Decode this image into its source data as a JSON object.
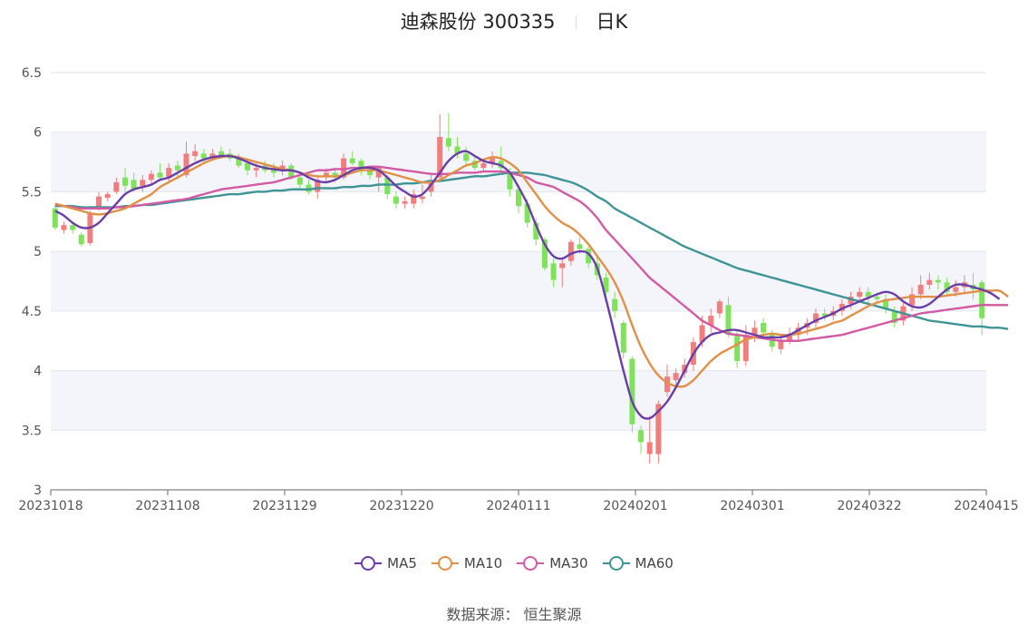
{
  "header": {
    "stock_name": "迪森股份 300335",
    "period": "日K"
  },
  "footer": {
    "source_label": "数据来源：",
    "source_value": "恒生聚源"
  },
  "colors": {
    "up": "#f27d7d",
    "down": "#7fe35a",
    "ma5": "#6a3ea8",
    "ma10": "#e29046",
    "ma30": "#d35aa4",
    "ma60": "#3f9596",
    "grid_band": "#f3f5fa",
    "grid_line": "#e2e6ef"
  },
  "chart_data": {
    "type": "candlestick",
    "y_ticks": [
      "3",
      "3.5",
      "4",
      "4.5",
      "5",
      "5.5",
      "6",
      "6.5"
    ],
    "ylim": [
      3,
      6.5
    ],
    "x_ticks": [
      "20231018",
      "20231108",
      "20231129",
      "20231220",
      "20240111",
      "20240201",
      "20240301",
      "20240322",
      "20240415"
    ],
    "legend": [
      "MA5",
      "MA10",
      "MA30",
      "MA60"
    ],
    "candles": [
      [
        5.36,
        5.2,
        5.38,
        5.18
      ],
      [
        5.18,
        5.22,
        5.25,
        5.15
      ],
      [
        5.22,
        5.18,
        5.25,
        5.15
      ],
      [
        5.14,
        5.06,
        5.16,
        5.04
      ],
      [
        5.07,
        5.32,
        5.34,
        5.05
      ],
      [
        5.36,
        5.46,
        5.5,
        5.34
      ],
      [
        5.45,
        5.48,
        5.5,
        5.42
      ],
      [
        5.5,
        5.58,
        5.62,
        5.48
      ],
      [
        5.62,
        5.55,
        5.7,
        5.5
      ],
      [
        5.6,
        5.52,
        5.66,
        5.5
      ],
      [
        5.55,
        5.6,
        5.64,
        5.5
      ],
      [
        5.6,
        5.65,
        5.68,
        5.56
      ],
      [
        5.66,
        5.62,
        5.74,
        5.6
      ],
      [
        5.62,
        5.7,
        5.74,
        5.58
      ],
      [
        5.72,
        5.68,
        5.76,
        5.62
      ],
      [
        5.64,
        5.82,
        5.92,
        5.62
      ],
      [
        5.8,
        5.84,
        5.9,
        5.76
      ],
      [
        5.82,
        5.78,
        5.86,
        5.74
      ],
      [
        5.78,
        5.82,
        5.86,
        5.76
      ],
      [
        5.84,
        5.8,
        5.88,
        5.78
      ],
      [
        5.82,
        5.78,
        5.86,
        5.76
      ],
      [
        5.78,
        5.72,
        5.82,
        5.7
      ],
      [
        5.74,
        5.68,
        5.78,
        5.64
      ],
      [
        5.68,
        5.7,
        5.74,
        5.62
      ],
      [
        5.72,
        5.68,
        5.76,
        5.66
      ],
      [
        5.7,
        5.66,
        5.74,
        5.62
      ],
      [
        5.68,
        5.72,
        5.76,
        5.64
      ],
      [
        5.72,
        5.62,
        5.74,
        5.6
      ],
      [
        5.62,
        5.56,
        5.66,
        5.52
      ],
      [
        5.56,
        5.5,
        5.6,
        5.48
      ],
      [
        5.5,
        5.6,
        5.62,
        5.44
      ],
      [
        5.62,
        5.66,
        5.7,
        5.58
      ],
      [
        5.66,
        5.62,
        5.7,
        5.58
      ],
      [
        5.62,
        5.78,
        5.82,
        5.6
      ],
      [
        5.78,
        5.74,
        5.84,
        5.72
      ],
      [
        5.76,
        5.68,
        5.78,
        5.64
      ],
      [
        5.68,
        5.64,
        5.72,
        5.6
      ],
      [
        5.62,
        5.7,
        5.72,
        5.5
      ],
      [
        5.62,
        5.48,
        5.64,
        5.44
      ],
      [
        5.46,
        5.4,
        5.5,
        5.36
      ],
      [
        5.4,
        5.42,
        5.46,
        5.36
      ],
      [
        5.4,
        5.48,
        5.52,
        5.36
      ],
      [
        5.44,
        5.46,
        5.56,
        5.4
      ],
      [
        5.5,
        5.6,
        5.64,
        5.46
      ],
      [
        5.62,
        5.96,
        6.15,
        5.6
      ],
      [
        5.95,
        5.88,
        6.16,
        5.84
      ],
      [
        5.88,
        5.82,
        5.96,
        5.78
      ],
      [
        5.82,
        5.76,
        5.88,
        5.72
      ],
      [
        5.76,
        5.7,
        5.8,
        5.68
      ],
      [
        5.7,
        5.74,
        5.78,
        5.66
      ],
      [
        5.74,
        5.78,
        5.84,
        5.7
      ],
      [
        5.76,
        5.7,
        5.88,
        5.66
      ],
      [
        5.66,
        5.52,
        5.7,
        5.46
      ],
      [
        5.52,
        5.38,
        5.56,
        5.32
      ],
      [
        5.4,
        5.24,
        5.44,
        5.2
      ],
      [
        5.24,
        5.1,
        5.28,
        5.05
      ],
      [
        5.1,
        4.86,
        5.12,
        4.84
      ],
      [
        4.9,
        4.76,
        4.94,
        4.7
      ],
      [
        4.86,
        4.9,
        4.94,
        4.7
      ],
      [
        4.92,
        5.08,
        5.1,
        4.88
      ],
      [
        5.06,
        5.02,
        5.12,
        4.98
      ],
      [
        5.02,
        4.9,
        5.04,
        4.86
      ],
      [
        4.9,
        4.8,
        4.96,
        4.76
      ],
      [
        4.78,
        4.66,
        4.82,
        4.62
      ],
      [
        4.6,
        4.5,
        4.66,
        4.44
      ],
      [
        4.4,
        4.15,
        4.42,
        4.1
      ],
      [
        4.1,
        3.55,
        4.12,
        3.48
      ],
      [
        3.5,
        3.4,
        3.54,
        3.3
      ],
      [
        3.3,
        3.4,
        3.62,
        3.22
      ],
      [
        3.3,
        3.72,
        3.75,
        3.22
      ],
      [
        3.82,
        3.95,
        4.05,
        3.78
      ],
      [
        3.92,
        3.98,
        4.02,
        3.86
      ],
      [
        3.98,
        4.05,
        4.1,
        3.94
      ],
      [
        4.05,
        4.24,
        4.28,
        4.0
      ],
      [
        4.24,
        4.38,
        4.46,
        4.2
      ],
      [
        4.38,
        4.46,
        4.52,
        4.32
      ],
      [
        4.48,
        4.58,
        4.6,
        4.44
      ],
      [
        4.55,
        4.3,
        4.62,
        4.28
      ],
      [
        4.3,
        4.08,
        4.34,
        4.02
      ],
      [
        4.08,
        4.3,
        4.38,
        4.04
      ],
      [
        4.3,
        4.36,
        4.42,
        4.24
      ],
      [
        4.4,
        4.32,
        4.44,
        4.26
      ],
      [
        4.3,
        4.2,
        4.34,
        4.16
      ],
      [
        4.18,
        4.26,
        4.3,
        4.14
      ],
      [
        4.26,
        4.3,
        4.36,
        4.22
      ],
      [
        4.3,
        4.36,
        4.4,
        4.26
      ],
      [
        4.36,
        4.4,
        4.44,
        4.3
      ],
      [
        4.4,
        4.48,
        4.52,
        4.36
      ],
      [
        4.48,
        4.46,
        4.52,
        4.42
      ],
      [
        4.46,
        4.5,
        4.54,
        4.42
      ],
      [
        4.5,
        4.56,
        4.6,
        4.46
      ],
      [
        4.56,
        4.62,
        4.66,
        4.52
      ],
      [
        4.62,
        4.66,
        4.7,
        4.58
      ],
      [
        4.66,
        4.62,
        4.7,
        4.56
      ],
      [
        4.62,
        4.6,
        4.66,
        4.56
      ],
      [
        4.6,
        4.52,
        4.64,
        4.48
      ],
      [
        4.5,
        4.4,
        4.54,
        4.36
      ],
      [
        4.42,
        4.54,
        4.58,
        4.38
      ],
      [
        4.55,
        4.64,
        4.7,
        4.5
      ],
      [
        4.64,
        4.72,
        4.8,
        4.6
      ],
      [
        4.72,
        4.76,
        4.82,
        4.68
      ],
      [
        4.76,
        4.74,
        4.8,
        4.68
      ],
      [
        4.74,
        4.66,
        4.78,
        4.62
      ],
      [
        4.66,
        4.7,
        4.76,
        4.62
      ],
      [
        4.7,
        4.74,
        4.8,
        4.66
      ],
      [
        4.72,
        4.68,
        4.82,
        4.6
      ],
      [
        4.74,
        4.44,
        4.76,
        4.3
      ]
    ],
    "ma5": [
      5.34,
      5.3,
      5.24,
      5.2,
      5.2,
      5.24,
      5.32,
      5.4,
      5.48,
      5.52,
      5.54,
      5.56,
      5.6,
      5.62,
      5.66,
      5.7,
      5.74,
      5.77,
      5.79,
      5.8,
      5.8,
      5.78,
      5.75,
      5.72,
      5.7,
      5.69,
      5.68,
      5.68,
      5.66,
      5.62,
      5.59,
      5.58,
      5.6,
      5.64,
      5.68,
      5.7,
      5.7,
      5.68,
      5.62,
      5.55,
      5.5,
      5.46,
      5.48,
      5.56,
      5.66,
      5.76,
      5.82,
      5.84,
      5.8,
      5.76,
      5.74,
      5.72,
      5.66,
      5.54,
      5.4,
      5.22,
      5.06,
      4.96,
      4.94,
      4.98,
      5.0,
      4.98,
      4.86,
      4.6,
      4.3,
      4.0,
      3.74,
      3.62,
      3.6,
      3.66,
      3.74,
      3.86,
      4.0,
      4.14,
      4.24,
      4.3,
      4.32,
      4.34,
      4.34,
      4.32,
      4.3,
      4.28,
      4.28,
      4.28,
      4.3,
      4.34,
      4.38,
      4.42,
      4.45,
      4.48,
      4.52,
      4.55,
      4.58,
      4.61,
      4.64,
      4.66,
      4.64,
      4.58,
      4.54,
      4.53,
      4.56,
      4.62,
      4.68,
      4.72,
      4.72,
      4.7,
      4.68,
      4.65,
      4.6
    ],
    "ma10": [
      5.4,
      5.38,
      5.36,
      5.34,
      5.32,
      5.31,
      5.32,
      5.34,
      5.36,
      5.4,
      5.44,
      5.48,
      5.54,
      5.58,
      5.62,
      5.66,
      5.7,
      5.74,
      5.77,
      5.79,
      5.8,
      5.79,
      5.77,
      5.75,
      5.73,
      5.71,
      5.69,
      5.68,
      5.66,
      5.64,
      5.63,
      5.63,
      5.63,
      5.64,
      5.66,
      5.68,
      5.68,
      5.68,
      5.66,
      5.64,
      5.62,
      5.6,
      5.58,
      5.58,
      5.6,
      5.64,
      5.68,
      5.72,
      5.74,
      5.77,
      5.79,
      5.78,
      5.74,
      5.68,
      5.58,
      5.48,
      5.38,
      5.3,
      5.24,
      5.2,
      5.14,
      5.06,
      4.96,
      4.86,
      4.74,
      4.58,
      4.38,
      4.2,
      4.06,
      3.96,
      3.9,
      3.87,
      3.87,
      3.92,
      4.0,
      4.08,
      4.14,
      4.18,
      4.22,
      4.26,
      4.28,
      4.3,
      4.31,
      4.3,
      4.3,
      4.31,
      4.33,
      4.35,
      4.37,
      4.4,
      4.42,
      4.46,
      4.5,
      4.54,
      4.57,
      4.59,
      4.6,
      4.61,
      4.62,
      4.62,
      4.62,
      4.62,
      4.63,
      4.64,
      4.65,
      4.66,
      4.67,
      4.67,
      4.67,
      4.62
    ],
    "ma30": [
      5.39,
      5.38,
      5.37,
      5.36,
      5.36,
      5.36,
      5.36,
      5.37,
      5.37,
      5.38,
      5.39,
      5.4,
      5.41,
      5.42,
      5.43,
      5.44,
      5.46,
      5.48,
      5.5,
      5.52,
      5.53,
      5.54,
      5.55,
      5.56,
      5.57,
      5.58,
      5.6,
      5.62,
      5.64,
      5.66,
      5.68,
      5.68,
      5.69,
      5.69,
      5.7,
      5.7,
      5.71,
      5.71,
      5.7,
      5.69,
      5.68,
      5.67,
      5.66,
      5.65,
      5.65,
      5.65,
      5.66,
      5.66,
      5.66,
      5.67,
      5.67,
      5.67,
      5.66,
      5.64,
      5.62,
      5.58,
      5.56,
      5.54,
      5.5,
      5.46,
      5.42,
      5.36,
      5.28,
      5.18,
      5.1,
      5.02,
      4.94,
      4.86,
      4.78,
      4.72,
      4.66,
      4.6,
      4.54,
      4.48,
      4.42,
      4.38,
      4.34,
      4.31,
      4.3,
      4.29,
      4.28,
      4.27,
      4.26,
      4.25,
      4.25,
      4.25,
      4.26,
      4.27,
      4.28,
      4.29,
      4.3,
      4.32,
      4.34,
      4.36,
      4.38,
      4.4,
      4.42,
      4.44,
      4.46,
      4.48,
      4.49,
      4.5,
      4.51,
      4.52,
      4.53,
      4.54,
      4.55,
      4.55,
      4.55,
      4.55
    ],
    "ma60": [
      5.38,
      5.38,
      5.38,
      5.37,
      5.37,
      5.37,
      5.37,
      5.37,
      5.38,
      5.38,
      5.39,
      5.39,
      5.4,
      5.41,
      5.42,
      5.43,
      5.44,
      5.45,
      5.46,
      5.47,
      5.48,
      5.48,
      5.49,
      5.5,
      5.5,
      5.51,
      5.51,
      5.52,
      5.52,
      5.52,
      5.53,
      5.53,
      5.53,
      5.54,
      5.54,
      5.55,
      5.55,
      5.56,
      5.56,
      5.56,
      5.57,
      5.57,
      5.58,
      5.59,
      5.59,
      5.6,
      5.61,
      5.62,
      5.63,
      5.63,
      5.64,
      5.65,
      5.66,
      5.66,
      5.66,
      5.65,
      5.64,
      5.62,
      5.6,
      5.58,
      5.55,
      5.51,
      5.46,
      5.42,
      5.36,
      5.32,
      5.28,
      5.24,
      5.2,
      5.16,
      5.12,
      5.08,
      5.04,
      5.01,
      4.98,
      4.95,
      4.92,
      4.89,
      4.86,
      4.84,
      4.82,
      4.8,
      4.78,
      4.76,
      4.74,
      4.72,
      4.7,
      4.68,
      4.66,
      4.64,
      4.62,
      4.6,
      4.58,
      4.56,
      4.54,
      4.52,
      4.5,
      4.48,
      4.46,
      4.44,
      4.42,
      4.41,
      4.4,
      4.39,
      4.38,
      4.37,
      4.37,
      4.36,
      4.36,
      4.35
    ]
  }
}
